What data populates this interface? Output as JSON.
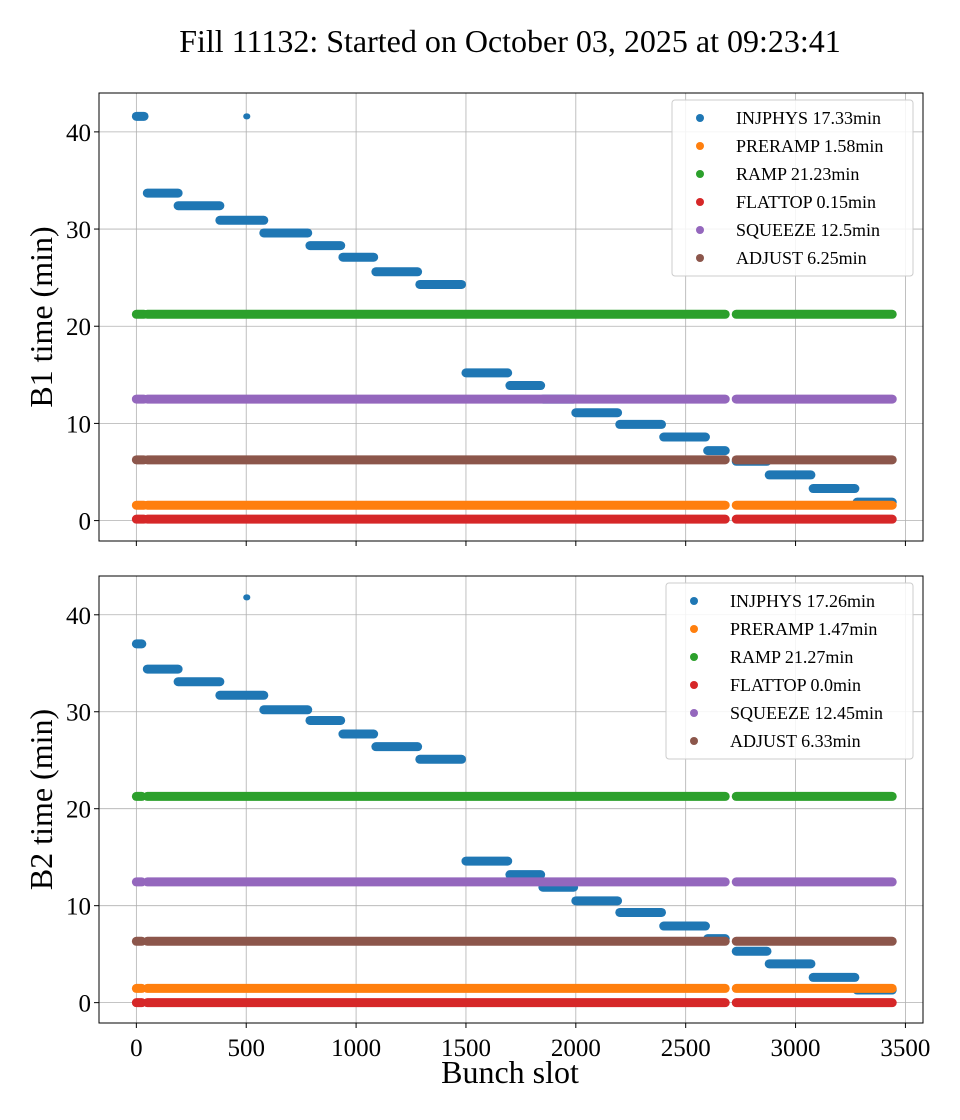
{
  "title": "Fill 11132: Started on October 03, 2025 at 09:23:41",
  "xlabel": "Bunch slot",
  "colors": {
    "INJPHYS": "#1f77b4",
    "PRERAMP": "#ff7f0e",
    "RAMP": "#2ca02c",
    "FLATTOP": "#d62728",
    "SQUEEZE": "#9467bd",
    "ADJUST": "#8c564b"
  },
  "chart_data": [
    {
      "type": "scatter",
      "ylabel": "B1 time (min)",
      "xlim": [
        -170,
        3580
      ],
      "ylim": [
        -2.1,
        44
      ],
      "xticks": [
        "0",
        "500",
        "1000",
        "1500",
        "2000",
        "2500",
        "3000",
        "3500"
      ],
      "yticks": [
        "0",
        "10",
        "20",
        "30",
        "40"
      ],
      "grid": true,
      "legend_position": "top-right",
      "legend": [
        "INJPHYS 17.33min",
        "PRERAMP 1.58min",
        "RAMP 21.23min",
        "FLATTOP 0.15min",
        "SQUEEZE 12.5min",
        "ADJUST 6.25min"
      ],
      "series": [
        {
          "key": "INJPHYS",
          "segments": [
            {
              "x0": 0,
              "x1": 35,
              "y": 41.6
            },
            {
              "x0": 500,
              "x1": 505,
              "y": 41.6,
              "thin": true
            },
            {
              "x0": 50,
              "x1": 190,
              "y": 33.7
            },
            {
              "x0": 190,
              "x1": 380,
              "y": 32.4
            },
            {
              "x0": 380,
              "x1": 580,
              "y": 30.9
            },
            {
              "x0": 580,
              "x1": 780,
              "y": 29.6
            },
            {
              "x0": 790,
              "x1": 930,
              "y": 28.3
            },
            {
              "x0": 940,
              "x1": 1080,
              "y": 27.1
            },
            {
              "x0": 1090,
              "x1": 1280,
              "y": 25.6
            },
            {
              "x0": 1290,
              "x1": 1480,
              "y": 24.3
            },
            {
              "x0": 1500,
              "x1": 1690,
              "y": 15.2
            },
            {
              "x0": 1700,
              "x1": 1840,
              "y": 13.9
            },
            {
              "x0": 1850,
              "x1": 1990,
              "y": 12.5
            },
            {
              "x0": 2000,
              "x1": 2190,
              "y": 11.1
            },
            {
              "x0": 2200,
              "x1": 2390,
              "y": 9.9
            },
            {
              "x0": 2400,
              "x1": 2590,
              "y": 8.6
            },
            {
              "x0": 2600,
              "x1": 2680,
              "y": 7.2
            },
            {
              "x0": 2730,
              "x1": 2870,
              "y": 6.1
            },
            {
              "x0": 2880,
              "x1": 3070,
              "y": 4.7
            },
            {
              "x0": 3080,
              "x1": 3270,
              "y": 3.3
            },
            {
              "x0": 3280,
              "x1": 3440,
              "y": 1.9
            }
          ]
        },
        {
          "key": "ADJUST",
          "segments": [
            {
              "x0": 0,
              "x1": 35,
              "y": 6.25
            },
            {
              "x0": 50,
              "x1": 2680,
              "y": 6.25
            },
            {
              "x0": 2730,
              "x1": 3440,
              "y": 6.25
            }
          ]
        },
        {
          "key": "SQUEEZE",
          "segments": [
            {
              "x0": 0,
              "x1": 35,
              "y": 12.5
            },
            {
              "x0": 50,
              "x1": 2680,
              "y": 12.5
            },
            {
              "x0": 2730,
              "x1": 3440,
              "y": 12.5
            }
          ]
        },
        {
          "key": "RAMP",
          "segments": [
            {
              "x0": 0,
              "x1": 35,
              "y": 21.23
            },
            {
              "x0": 50,
              "x1": 2680,
              "y": 21.23
            },
            {
              "x0": 2730,
              "x1": 3440,
              "y": 21.23
            }
          ]
        },
        {
          "key": "PRERAMP",
          "segments": [
            {
              "x0": 0,
              "x1": 35,
              "y": 1.58
            },
            {
              "x0": 50,
              "x1": 2680,
              "y": 1.58
            },
            {
              "x0": 2730,
              "x1": 3440,
              "y": 1.58
            }
          ]
        },
        {
          "key": "FLATTOP",
          "segments": [
            {
              "x0": 0,
              "x1": 35,
              "y": 0.15
            },
            {
              "x0": 50,
              "x1": 2680,
              "y": 0.15
            },
            {
              "x0": 2730,
              "x1": 3440,
              "y": 0.15
            }
          ]
        }
      ]
    },
    {
      "type": "scatter",
      "ylabel": "B2 time (min)",
      "xlim": [
        -170,
        3580
      ],
      "ylim": [
        -2.1,
        44
      ],
      "xticks": [
        "0",
        "500",
        "1000",
        "1500",
        "2000",
        "2500",
        "3000",
        "3500"
      ],
      "yticks": [
        "0",
        "10",
        "20",
        "30",
        "40"
      ],
      "grid": true,
      "legend_position": "top-right",
      "legend": [
        "INJPHYS 17.26min",
        "PRERAMP 1.47min",
        "RAMP 21.27min",
        "FLATTOP 0.0min",
        "SQUEEZE 12.45min",
        "ADJUST 6.33min"
      ],
      "series": [
        {
          "key": "INJPHYS",
          "segments": [
            {
              "x0": 0,
              "x1": 25,
              "y": 37.0
            },
            {
              "x0": 500,
              "x1": 505,
              "y": 41.8,
              "thin": true
            },
            {
              "x0": 50,
              "x1": 190,
              "y": 34.4
            },
            {
              "x0": 190,
              "x1": 380,
              "y": 33.1
            },
            {
              "x0": 380,
              "x1": 580,
              "y": 31.7
            },
            {
              "x0": 580,
              "x1": 780,
              "y": 30.2
            },
            {
              "x0": 790,
              "x1": 930,
              "y": 29.1
            },
            {
              "x0": 940,
              "x1": 1080,
              "y": 27.7
            },
            {
              "x0": 1090,
              "x1": 1280,
              "y": 26.4
            },
            {
              "x0": 1290,
              "x1": 1480,
              "y": 25.1
            },
            {
              "x0": 1500,
              "x1": 1690,
              "y": 14.6
            },
            {
              "x0": 1700,
              "x1": 1840,
              "y": 13.2
            },
            {
              "x0": 1850,
              "x1": 1990,
              "y": 11.9
            },
            {
              "x0": 2000,
              "x1": 2190,
              "y": 10.5
            },
            {
              "x0": 2200,
              "x1": 2390,
              "y": 9.3
            },
            {
              "x0": 2400,
              "x1": 2590,
              "y": 7.9
            },
            {
              "x0": 2600,
              "x1": 2680,
              "y": 6.6
            },
            {
              "x0": 2730,
              "x1": 2870,
              "y": 5.3
            },
            {
              "x0": 2880,
              "x1": 3070,
              "y": 4.0
            },
            {
              "x0": 3080,
              "x1": 3270,
              "y": 2.6
            },
            {
              "x0": 3280,
              "x1": 3440,
              "y": 1.3
            }
          ]
        },
        {
          "key": "ADJUST",
          "segments": [
            {
              "x0": 0,
              "x1": 25,
              "y": 6.33
            },
            {
              "x0": 50,
              "x1": 2680,
              "y": 6.33
            },
            {
              "x0": 2730,
              "x1": 3440,
              "y": 6.33
            }
          ]
        },
        {
          "key": "SQUEEZE",
          "segments": [
            {
              "x0": 0,
              "x1": 25,
              "y": 12.45
            },
            {
              "x0": 50,
              "x1": 2680,
              "y": 12.45
            },
            {
              "x0": 2730,
              "x1": 3440,
              "y": 12.45
            }
          ]
        },
        {
          "key": "RAMP",
          "segments": [
            {
              "x0": 0,
              "x1": 25,
              "y": 21.27
            },
            {
              "x0": 50,
              "x1": 2680,
              "y": 21.27
            },
            {
              "x0": 2730,
              "x1": 3440,
              "y": 21.27
            }
          ]
        },
        {
          "key": "PRERAMP",
          "segments": [
            {
              "x0": 0,
              "x1": 25,
              "y": 1.47
            },
            {
              "x0": 50,
              "x1": 2680,
              "y": 1.47
            },
            {
              "x0": 2730,
              "x1": 3440,
              "y": 1.47
            }
          ]
        },
        {
          "key": "FLATTOP",
          "segments": [
            {
              "x0": 0,
              "x1": 25,
              "y": 0.0
            },
            {
              "x0": 50,
              "x1": 2680,
              "y": 0.0
            },
            {
              "x0": 2730,
              "x1": 3440,
              "y": 0.0
            }
          ]
        }
      ]
    }
  ]
}
